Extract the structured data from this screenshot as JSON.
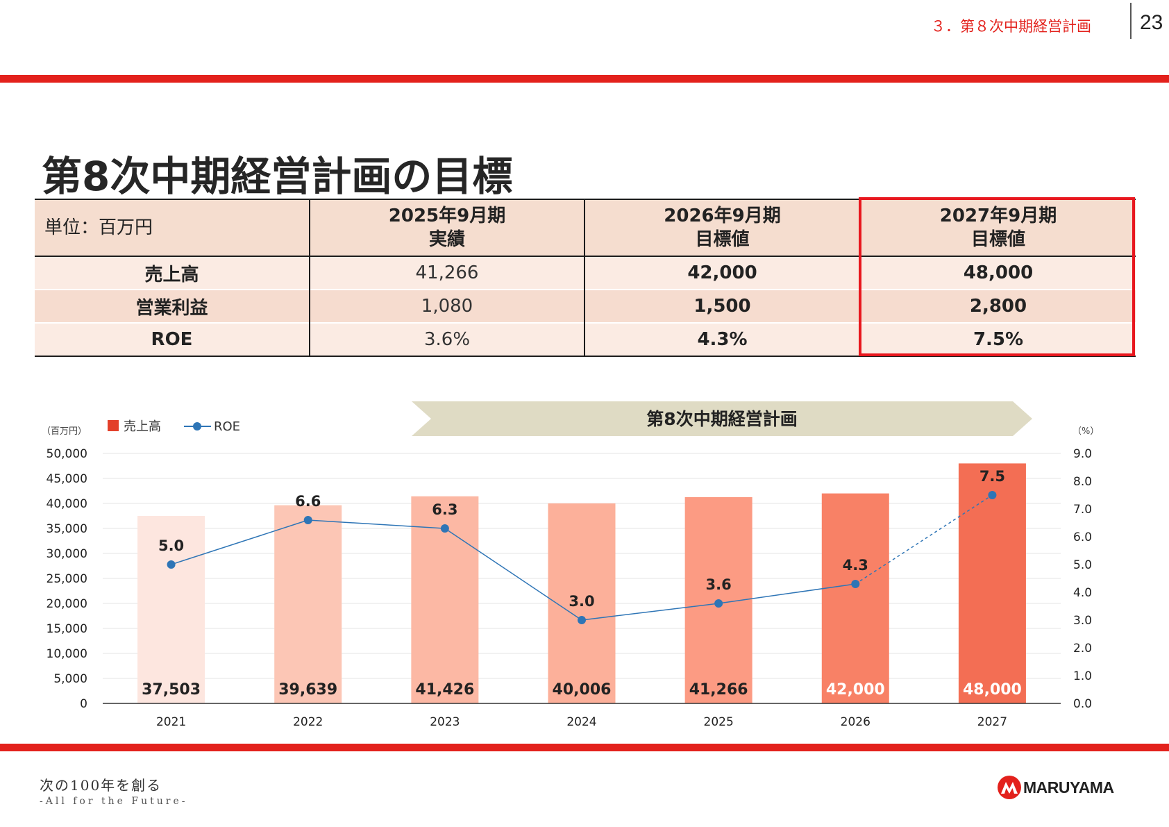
{
  "header": {
    "section": "３．第８次中期経営計画",
    "page_number": "23"
  },
  "title": "第8次中期経営計画の目標",
  "table": {
    "unit_label": "単位：百万円",
    "columns": [
      {
        "period": "2025年9月期",
        "kind": "実績"
      },
      {
        "period": "2026年9月期",
        "kind": "目標値"
      },
      {
        "period": "2027年9月期",
        "kind": "目標値"
      }
    ],
    "rows": [
      {
        "label": "売上高",
        "values": [
          "41,266",
          "42,000",
          "48,000"
        ]
      },
      {
        "label": "営業利益",
        "values": [
          "1,080",
          "1,500",
          "2,800"
        ]
      },
      {
        "label": "ROE",
        "values": [
          "3.6%",
          "4.3%",
          "7.5%"
        ]
      }
    ]
  },
  "chart_data": {
    "type": "bar",
    "banner": "第8次中期経営計画",
    "left_unit": "（百万円）",
    "right_unit": "（%）",
    "categories": [
      "2021",
      "2022",
      "2023",
      "2024",
      "2025",
      "2026",
      "2027"
    ],
    "series": [
      {
        "name": "売上高",
        "type": "bar",
        "axis": "left",
        "values": [
          37503,
          39639,
          41426,
          40006,
          41266,
          42000,
          48000
        ],
        "labels": [
          "37,503",
          "39,639",
          "41,426",
          "40,006",
          "41,266",
          "42,000",
          "48,000"
        ],
        "colors": [
          "#fde6df",
          "#fcc6b5",
          "#fcb8a4",
          "#fcb09a",
          "#fc9b83",
          "#f88166",
          "#f36e54"
        ]
      },
      {
        "name": "ROE",
        "type": "line",
        "axis": "right",
        "values": [
          5.0,
          6.6,
          6.3,
          3.0,
          3.6,
          4.3,
          7.5
        ],
        "labels": [
          "5.0",
          "6.6",
          "6.3",
          "3.0",
          "3.6",
          "4.3",
          "7.5"
        ],
        "dashed_from_index": 5,
        "color": "#2e75b6"
      }
    ],
    "left_ticks": [
      "0",
      "5,000",
      "10,000",
      "15,000",
      "20,000",
      "25,000",
      "30,000",
      "35,000",
      "40,000",
      "45,000",
      "50,000"
    ],
    "right_ticks": [
      "0.0",
      "1.0",
      "2.0",
      "3.0",
      "4.0",
      "5.0",
      "6.0",
      "7.0",
      "8.0",
      "9.0"
    ],
    "ylim_left": [
      0,
      50000
    ],
    "ylim_right": [
      0,
      9
    ],
    "grid": true,
    "legend_position": "top-left"
  },
  "footer": {
    "slogan_jp": "次の100年を創る",
    "slogan_en": "-All for the Future-",
    "logo_text": "MARUYAMA"
  }
}
